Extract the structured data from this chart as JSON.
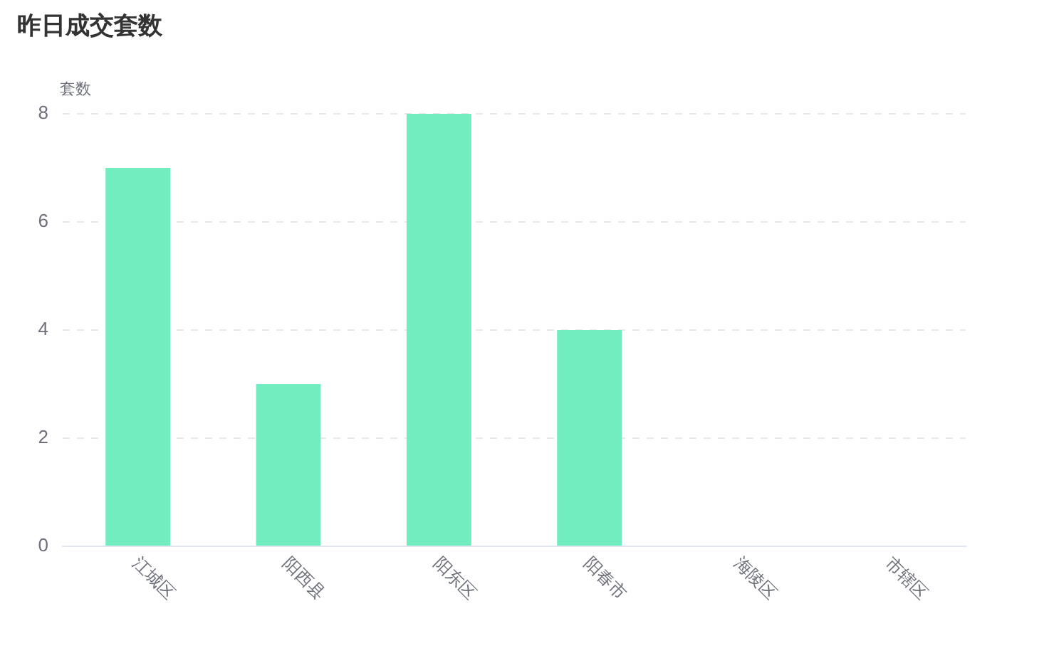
{
  "chart_data": {
    "type": "bar",
    "title": "昨日成交套数",
    "ylabel": "套数",
    "categories": [
      "江城区",
      "阳西县",
      "阳东区",
      "阳春市",
      "海陵区",
      "市辖区"
    ],
    "values": [
      7,
      3,
      8,
      4,
      0,
      0
    ],
    "color": "#72edbf",
    "ylim": [
      0,
      8
    ],
    "yticks": [
      0,
      2,
      4,
      6,
      8
    ],
    "grid": "y"
  }
}
